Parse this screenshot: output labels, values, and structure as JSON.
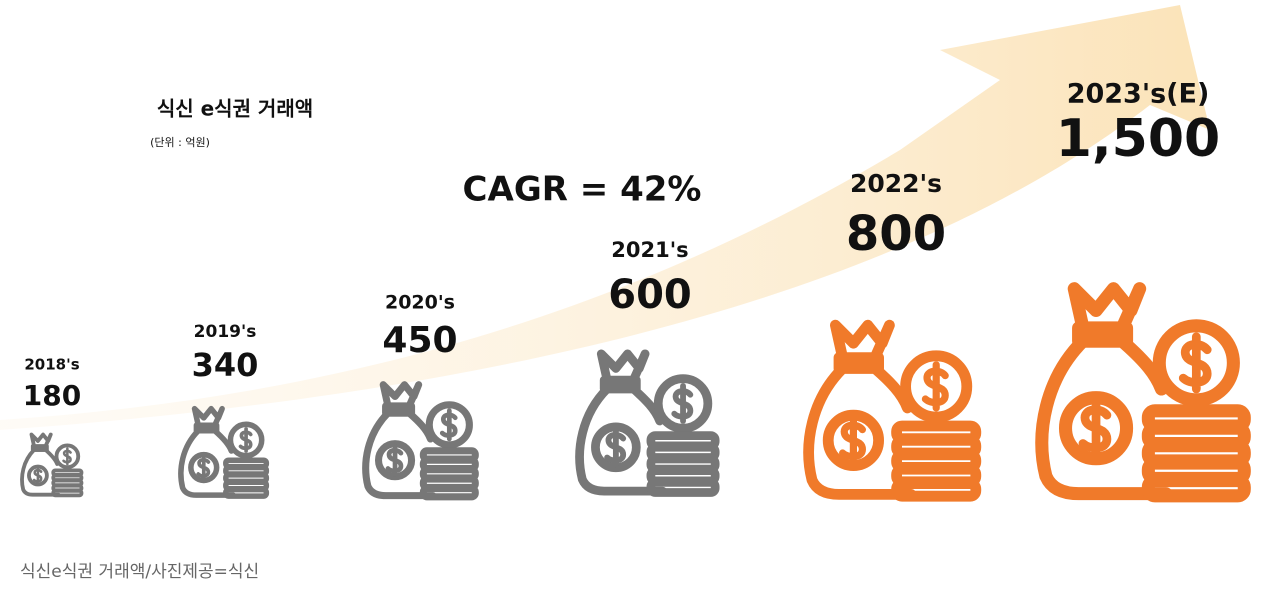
{
  "header": {
    "title": "식신 e식권 거래액",
    "unit": "(단위 : 억원)"
  },
  "cagr": "CAGR = 42%",
  "items": [
    {
      "year": "2018's",
      "value": "180"
    },
    {
      "year": "2019's",
      "value": "340"
    },
    {
      "year": "2020's",
      "value": "450"
    },
    {
      "year": "2021's",
      "value": "600"
    },
    {
      "year": "2022's",
      "value": "800"
    },
    {
      "year": "2023's(E)",
      "value": "1,500"
    }
  ],
  "caption": "식신e식권 거래액/사진제공=식신"
}
